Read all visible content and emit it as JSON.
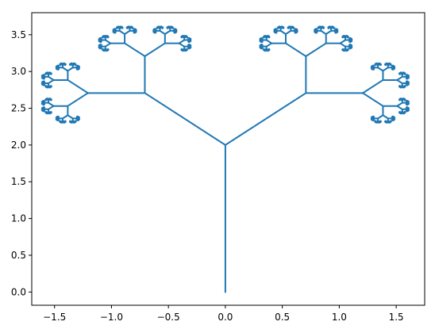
{
  "chart_data": {
    "type": "line",
    "title": "",
    "xlabel": "",
    "ylabel": "",
    "xlim": [
      -1.7,
      1.75
    ],
    "ylim": [
      -0.18,
      3.8
    ],
    "grid": false,
    "legend": "none",
    "series": [
      {
        "name": "fractal-tree",
        "color": "#1f77b4",
        "description_from_data": "binary fractal tree: trunk length 2 from (0,0) to (0,2), branches rotate ±45° with length ratio 0.5, recursion depth 11",
        "root": [
          0,
          0
        ],
        "trunk_length": 2,
        "branch_angle_deg": 45,
        "length_ratio": 0.5,
        "depth": 11
      }
    ],
    "x_ticks": [
      -1.5,
      -1.0,
      -0.5,
      0.0,
      0.5,
      1.0,
      1.5
    ],
    "x_tick_labels": [
      "−1.5",
      "−1.0",
      "−0.5",
      "0.0",
      "0.5",
      "1.0",
      "1.5"
    ],
    "y_ticks": [
      0.0,
      0.5,
      1.0,
      1.5,
      2.0,
      2.5,
      3.0,
      3.5
    ],
    "y_tick_labels": [
      "0.0",
      "0.5",
      "1.0",
      "1.5",
      "2.0",
      "2.5",
      "3.0",
      "3.5"
    ]
  }
}
